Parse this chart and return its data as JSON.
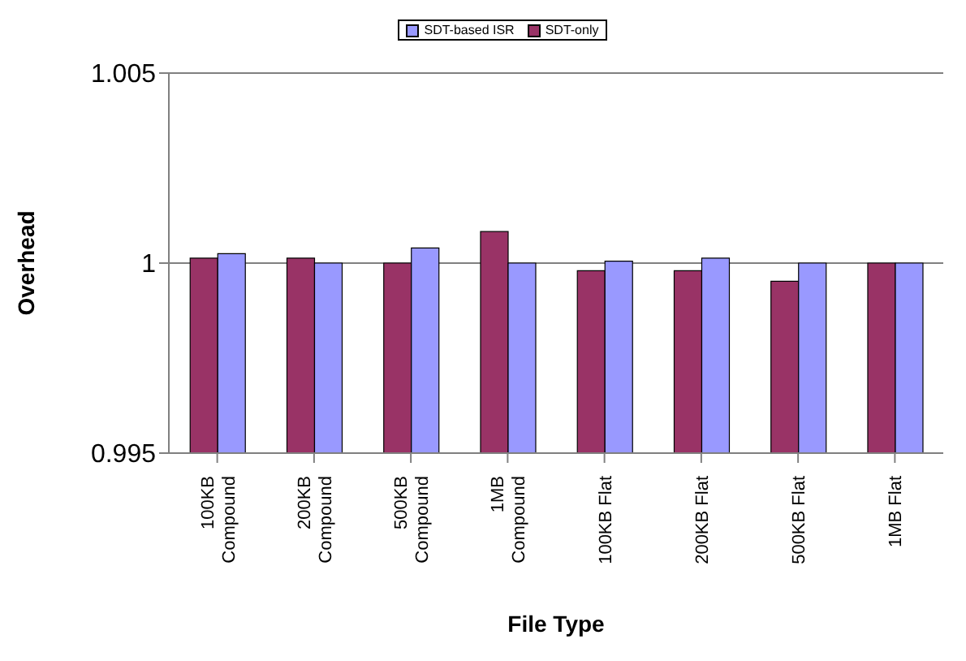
{
  "chart_data": {
    "type": "bar",
    "xlabel": "File Type",
    "ylabel": "Overhead",
    "categories": [
      "100KB Compound",
      "200KB Compound",
      "500KB Compound",
      "1MB Compound",
      "100KB Flat",
      "200KB Flat",
      "500KB Flat",
      "1MB Flat"
    ],
    "series": [
      {
        "name": "SDT-only",
        "color": "#993366",
        "values": [
          1.00013,
          1.00013,
          1.0,
          1.00083,
          0.9998,
          0.9998,
          0.99952,
          1.0
        ]
      },
      {
        "name": "SDT-based ISR",
        "color": "#9999ff",
        "values": [
          1.00025,
          1.0,
          1.0004,
          1.0,
          1.00005,
          1.00013,
          1.0,
          1.0
        ]
      }
    ],
    "ylim": [
      0.995,
      1.005
    ],
    "yticks": [
      0.995,
      1,
      1.005
    ],
    "grid": "y",
    "legend": "top"
  }
}
